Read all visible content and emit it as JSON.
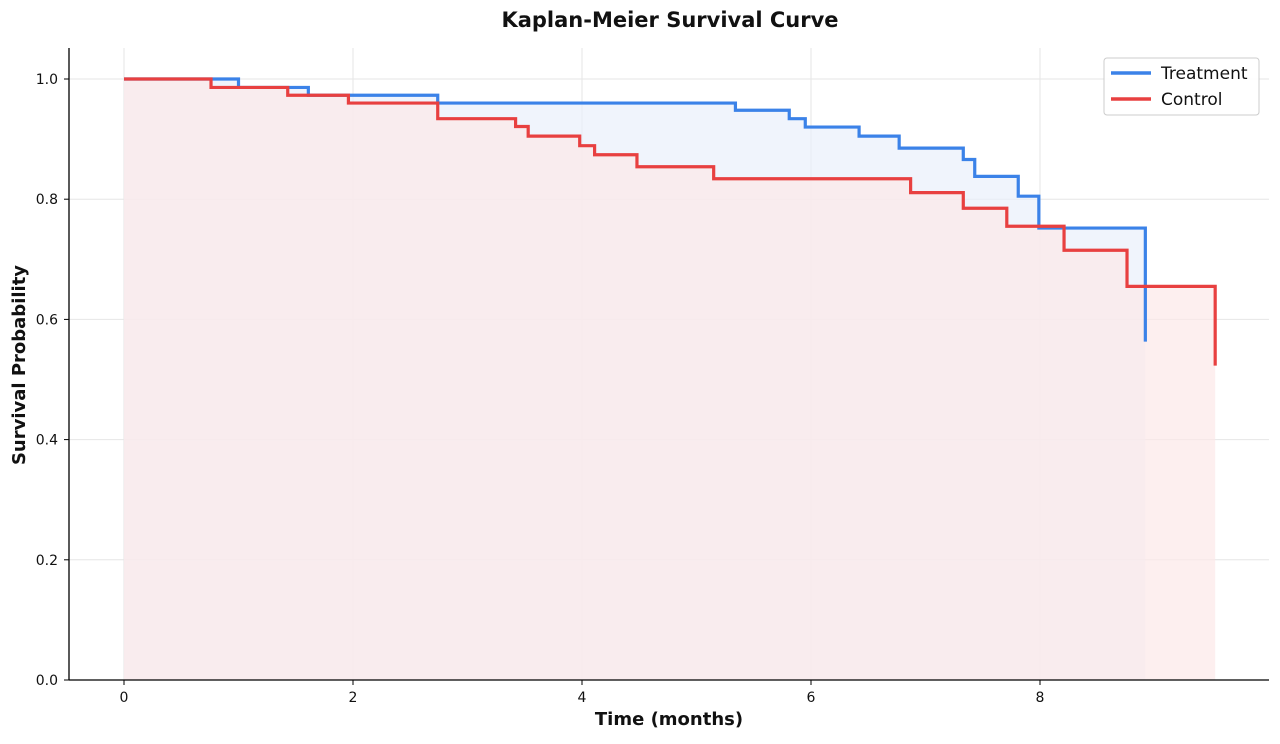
{
  "chart_data": {
    "type": "line",
    "subtype": "step",
    "title": "Kaplan-Meier Survival Curve",
    "xlabel": "Time (months)",
    "ylabel": "Survival Probability",
    "xlim": [
      -0.5,
      10
    ],
    "ylim": [
      0,
      1.05
    ],
    "xticks": [
      0,
      2,
      4,
      6,
      8
    ],
    "yticks": [
      0.0,
      0.2,
      0.4,
      0.6,
      0.8,
      1.0
    ],
    "ytick_labels": [
      "0.0",
      "0.2",
      "0.4",
      "0.6",
      "0.8",
      "1.0"
    ],
    "grid": true,
    "legend_position": "upper right",
    "series": [
      {
        "name": "Treatment",
        "color": "#3b82e8",
        "fill": "#e9effb",
        "x": [
          0,
          1.0,
          1.61,
          2.74,
          5.34,
          5.81,
          5.95,
          6.42,
          6.77,
          7.33,
          7.43,
          7.81,
          7.99,
          8.92
        ],
        "y": [
          1.0,
          0.986,
          0.973,
          0.96,
          0.948,
          0.934,
          0.92,
          0.905,
          0.885,
          0.866,
          0.838,
          0.805,
          0.752,
          0.563
        ]
      },
      {
        "name": "Control",
        "color": "#e84040",
        "fill": "#fce8e8",
        "x": [
          0,
          0.76,
          1.43,
          1.96,
          2.74,
          3.42,
          3.53,
          3.98,
          4.11,
          4.48,
          5.15,
          6.87,
          7.33,
          7.71,
          8.21,
          8.76,
          9.53
        ],
        "y": [
          1.0,
          0.986,
          0.973,
          0.96,
          0.934,
          0.921,
          0.905,
          0.889,
          0.874,
          0.854,
          0.834,
          0.811,
          0.785,
          0.755,
          0.715,
          0.655,
          0.523
        ]
      }
    ]
  }
}
